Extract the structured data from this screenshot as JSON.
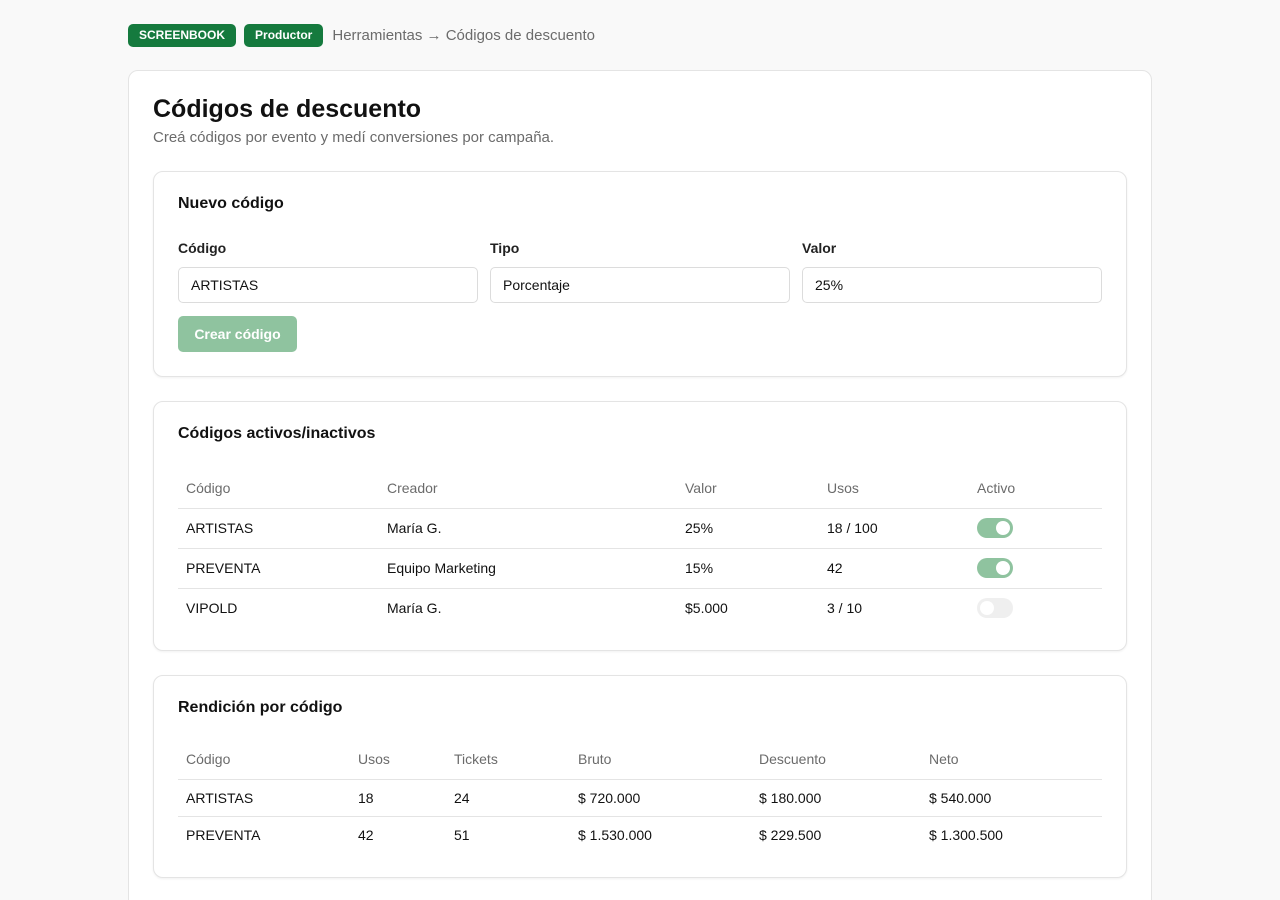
{
  "header": {
    "brand_badge": "SCREENBOOK",
    "role_badge": "Productor",
    "breadcrumb": "Herramientas → Códigos de descuento"
  },
  "page": {
    "title": "Códigos de descuento",
    "subtitle": "Creá códigos por evento y medí conversiones por campaña."
  },
  "new_code": {
    "title": "Nuevo código",
    "code_label": "Código",
    "code_value": "ARTISTAS",
    "type_label": "Tipo",
    "type_value": "Porcentaje",
    "value_label": "Valor",
    "value_value": "25%",
    "create_button": "Crear código"
  },
  "codes": {
    "title": "Códigos activos/inactivos",
    "columns": [
      "Código",
      "Creador",
      "Valor",
      "Usos",
      "Activo"
    ],
    "rows": [
      {
        "code": "ARTISTAS",
        "creator": "María G.",
        "value": "25%",
        "uses": "18 / 100",
        "active": true
      },
      {
        "code": "PREVENTA",
        "creator": "Equipo Marketing",
        "value": "15%",
        "uses": "42",
        "active": true
      },
      {
        "code": "VIPOLD",
        "creator": "María G.",
        "value": "$5.000",
        "uses": "3 / 10",
        "active": false
      }
    ]
  },
  "performance": {
    "title": "Rendición por código",
    "columns": [
      "Código",
      "Usos",
      "Tickets",
      "Bruto",
      "Descuento",
      "Neto"
    ],
    "rows": [
      {
        "code": "ARTISTAS",
        "uses": "18",
        "tickets": "24",
        "gross": "$ 720.000",
        "discount": "$ 180.000",
        "net": "$ 540.000"
      },
      {
        "code": "PREVENTA",
        "uses": "42",
        "tickets": "51",
        "gross": "$ 1.530.000",
        "discount": "$ 229.500",
        "net": "$ 1.300.500"
      }
    ]
  },
  "colors": {
    "brand_green": "#157a3e",
    "toggle_on": "#8fc39f",
    "toggle_off": "#efefef"
  }
}
